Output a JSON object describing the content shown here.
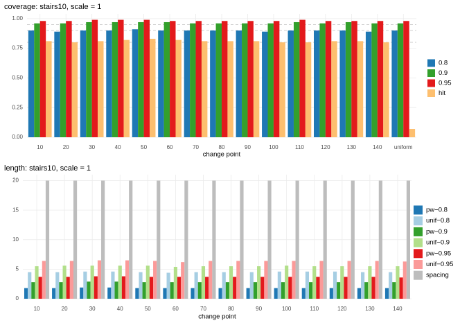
{
  "chart_data": [
    {
      "type": "bar",
      "title": "coverage: stairs10, scale = 1",
      "x_label": "change point",
      "categories": [
        "10",
        "20",
        "30",
        "40",
        "50",
        "60",
        "70",
        "80",
        "90",
        "100",
        "110",
        "120",
        "130",
        "140",
        "uniform"
      ],
      "series": [
        {
          "name": "0.8",
          "color": "#1f78b4",
          "values": [
            0.9,
            0.89,
            0.9,
            0.9,
            0.91,
            0.9,
            0.9,
            0.9,
            0.9,
            0.89,
            0.9,
            0.9,
            0.9,
            0.89,
            0.9
          ]
        },
        {
          "name": "0.9",
          "color": "#33a02c",
          "values": [
            0.96,
            0.96,
            0.97,
            0.97,
            0.97,
            0.97,
            0.96,
            0.96,
            0.96,
            0.96,
            0.97,
            0.96,
            0.97,
            0.96,
            0.96
          ]
        },
        {
          "name": "0.95",
          "color": "#e31a1c",
          "values": [
            0.98,
            0.98,
            0.99,
            0.99,
            0.99,
            0.98,
            0.98,
            0.98,
            0.98,
            0.98,
            0.99,
            0.98,
            0.98,
            0.98,
            0.98
          ]
        },
        {
          "name": "hit",
          "color": "#fdbf6f",
          "values": [
            0.81,
            0.8,
            0.81,
            0.82,
            0.83,
            0.82,
            0.81,
            0.81,
            0.81,
            0.8,
            0.8,
            0.81,
            0.81,
            0.8,
            0.07
          ]
        }
      ],
      "reference_lines": [
        0.8,
        0.9,
        0.95
      ],
      "ylim": [
        0,
        1.04
      ],
      "yticks": [
        {
          "value": 0,
          "label": "0.00"
        },
        {
          "value": 0.25,
          "label": "0.25"
        },
        {
          "value": 0.5,
          "label": "0.50"
        },
        {
          "value": 0.75,
          "label": "0.75"
        },
        {
          "value": 1,
          "label": "1.00"
        }
      ],
      "grid": true,
      "legend": "right"
    },
    {
      "type": "bar",
      "title": "length: stairs10, scale = 1",
      "x_label": "change point",
      "categories": [
        "10",
        "20",
        "30",
        "40",
        "50",
        "60",
        "70",
        "80",
        "90",
        "100",
        "110",
        "120",
        "130",
        "140"
      ],
      "series": [
        {
          "name": "pw−0.8",
          "color": "#1f78b4",
          "values": [
            1.8,
            1.8,
            1.9,
            1.9,
            1.8,
            1.8,
            1.8,
            1.8,
            1.8,
            1.8,
            1.8,
            1.8,
            1.8,
            1.8
          ]
        },
        {
          "name": "unif−0.8",
          "color": "#a6cee3",
          "values": [
            4.5,
            4.5,
            4.6,
            4.6,
            4.5,
            4.4,
            4.5,
            4.5,
            4.5,
            4.6,
            4.6,
            4.6,
            4.5,
            4.5
          ]
        },
        {
          "name": "pw−0.9",
          "color": "#33a02c",
          "values": [
            2.8,
            2.8,
            2.9,
            2.9,
            2.8,
            2.8,
            2.8,
            2.8,
            2.8,
            2.8,
            2.8,
            2.8,
            2.8,
            2.8
          ]
        },
        {
          "name": "unif−0.9",
          "color": "#b2df8a",
          "values": [
            5.5,
            5.6,
            5.6,
            5.6,
            5.6,
            5.4,
            5.5,
            5.5,
            5.5,
            5.6,
            5.5,
            5.5,
            5.5,
            5.5
          ]
        },
        {
          "name": "pw−0.95",
          "color": "#e31a1c",
          "values": [
            3.7,
            3.7,
            3.8,
            3.8,
            3.7,
            3.7,
            3.7,
            3.7,
            3.7,
            3.7,
            3.7,
            3.7,
            3.7,
            3.6
          ]
        },
        {
          "name": "unif−0.95",
          "color": "#fb9a99",
          "values": [
            6.4,
            6.4,
            6.5,
            6.5,
            6.4,
            6.2,
            6.4,
            6.4,
            6.4,
            6.4,
            6.4,
            6.4,
            6.4,
            6.3
          ]
        },
        {
          "name": "spacing",
          "color": "#bdbdbd",
          "values": [
            20,
            20,
            20,
            20,
            20,
            20,
            20,
            20,
            20,
            20,
            20,
            20,
            20,
            20
          ]
        }
      ],
      "ylim": [
        0,
        21
      ],
      "yticks": [
        0,
        5,
        10,
        15,
        20
      ],
      "grid": true,
      "legend": "right"
    }
  ]
}
